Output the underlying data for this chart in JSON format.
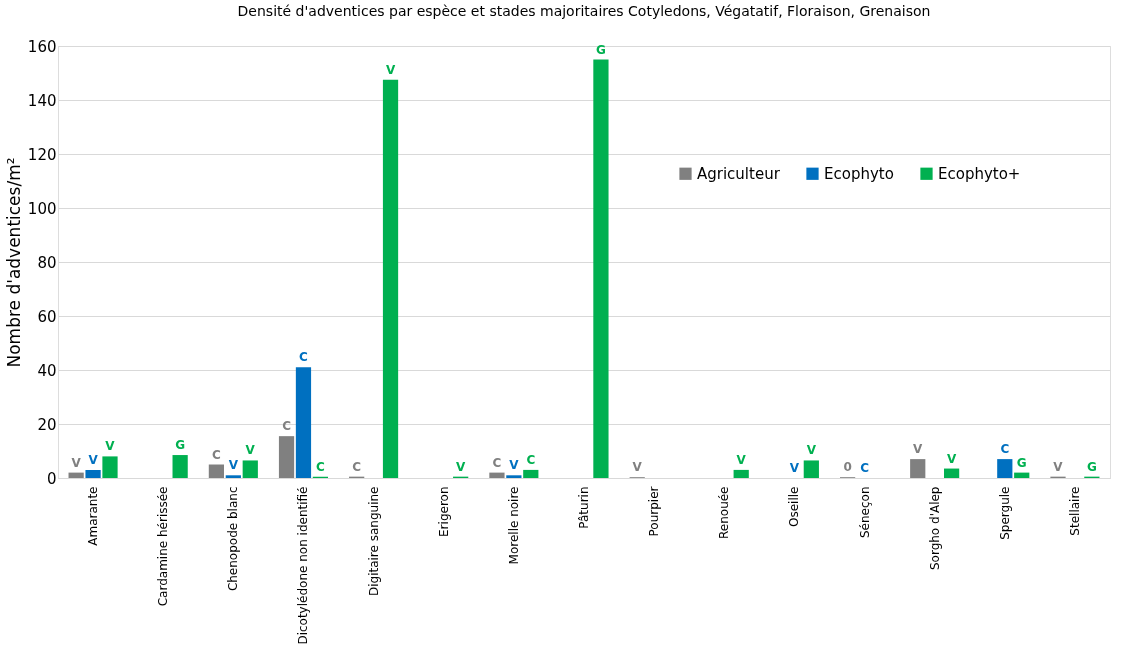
{
  "chart_data": {
    "type": "bar",
    "title": "Densité d'adventices par espèce et stades majoritaires Cotyledons, Végatatif, Floraison, Grenaison",
    "ylabel": "Nombre d'adventices/m²",
    "categories": [
      "Amarante",
      "Cardamine hérissée",
      "Chenopode blanc",
      "Dicotylédone non identifié",
      "Digitaire sanguine",
      "Erigeron",
      "Morelle noire",
      "Pâturin",
      "Pourpier",
      "Renouée",
      "Oseille",
      "Séneçon",
      "Sorgho d'Alep",
      "Spergule",
      "Stellaire"
    ],
    "series": [
      {
        "name": "Agriculteur",
        "color": "#808080",
        "values": [
          2,
          null,
          5,
          15.5,
          0.5,
          null,
          2,
          null,
          0.3,
          null,
          null,
          0.3,
          7,
          null,
          0.5
        ],
        "value_labels": [
          "V",
          null,
          "C",
          "C",
          "C",
          null,
          "C",
          null,
          "V",
          null,
          null,
          "0",
          "V",
          null,
          "V"
        ]
      },
      {
        "name": "Ecophyto",
        "color": "#0070c0",
        "values": [
          3,
          null,
          1,
          41,
          null,
          null,
          1,
          null,
          null,
          null,
          0,
          0,
          null,
          7,
          null
        ],
        "value_labels": [
          "V",
          null,
          "V",
          "C",
          null,
          null,
          "V",
          null,
          null,
          null,
          "V",
          "C",
          null,
          "C",
          null
        ]
      },
      {
        "name": "Ecophyto+",
        "color": "#00b050",
        "values": [
          8,
          8.5,
          6.5,
          0.5,
          147.5,
          0.5,
          3,
          155,
          null,
          3,
          6.5,
          null,
          3.5,
          2,
          0.5
        ],
        "value_labels": [
          "V",
          "G",
          "V",
          "C",
          "V",
          "V",
          "C",
          "G",
          null,
          "V",
          "V",
          null,
          "V",
          "G",
          "G"
        ]
      }
    ],
    "ylim": [
      0,
      160
    ],
    "yticks": [
      0,
      20,
      40,
      60,
      80,
      100,
      120,
      140,
      160
    ],
    "grid": "y",
    "legend": "right"
  }
}
